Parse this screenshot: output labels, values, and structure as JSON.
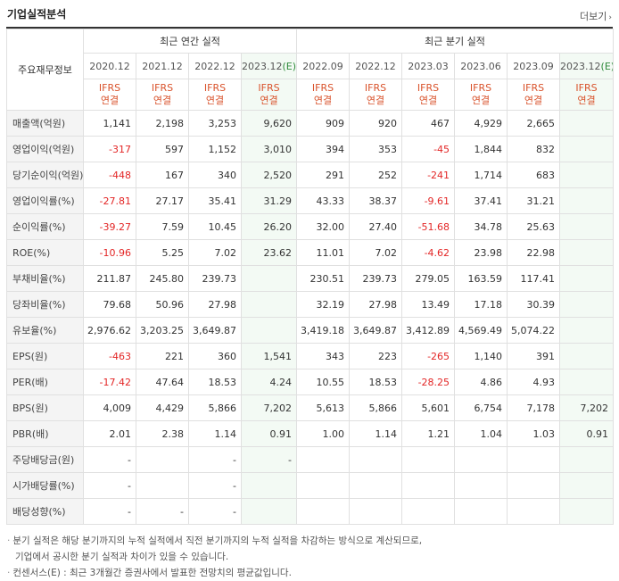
{
  "header": {
    "title": "기업실적분석",
    "more_label": "더보기"
  },
  "table": {
    "corner_label": "주요재무정보",
    "group_annual": "최근 연간 실적",
    "group_quarter": "최근 분기 실적",
    "periods": [
      "2020.12",
      "2021.12",
      "2022.12",
      "2023.12(E)",
      "2022.09",
      "2022.12",
      "2023.03",
      "2023.06",
      "2023.09",
      "2023.12(E)"
    ],
    "basis_line1": "IFRS",
    "basis_line2": "연결",
    "rows": [
      {
        "label": "매출액(억원)",
        "values": [
          "1,141",
          "2,198",
          "3,253",
          "9,620",
          "909",
          "920",
          "467",
          "4,929",
          "2,665",
          ""
        ]
      },
      {
        "label": "영업이익(억원)",
        "values": [
          "-317",
          "597",
          "1,152",
          "3,010",
          "394",
          "353",
          "-45",
          "1,844",
          "832",
          ""
        ]
      },
      {
        "label": "당기순이익(억원)",
        "values": [
          "-448",
          "167",
          "340",
          "2,520",
          "291",
          "252",
          "-241",
          "1,714",
          "683",
          ""
        ]
      },
      {
        "label": "영업이익률(%)",
        "values": [
          "-27.81",
          "27.17",
          "35.41",
          "31.29",
          "43.33",
          "38.37",
          "-9.61",
          "37.41",
          "31.21",
          ""
        ]
      },
      {
        "label": "순이익률(%)",
        "values": [
          "-39.27",
          "7.59",
          "10.45",
          "26.20",
          "32.00",
          "27.40",
          "-51.68",
          "34.78",
          "25.63",
          ""
        ]
      },
      {
        "label": "ROE(%)",
        "values": [
          "-10.96",
          "5.25",
          "7.02",
          "23.62",
          "11.01",
          "7.02",
          "-4.62",
          "23.98",
          "22.98",
          ""
        ]
      },
      {
        "label": "부채비율(%)",
        "values": [
          "211.87",
          "245.80",
          "239.73",
          "",
          "230.51",
          "239.73",
          "279.05",
          "163.59",
          "117.41",
          ""
        ]
      },
      {
        "label": "당좌비율(%)",
        "values": [
          "79.68",
          "50.96",
          "27.98",
          "",
          "32.19",
          "27.98",
          "13.49",
          "17.18",
          "30.39",
          ""
        ]
      },
      {
        "label": "유보율(%)",
        "values": [
          "2,976.62",
          "3,203.25",
          "3,649.87",
          "",
          "3,419.18",
          "3,649.87",
          "3,412.89",
          "4,569.49",
          "5,074.22",
          ""
        ]
      },
      {
        "label": "EPS(원)",
        "values": [
          "-463",
          "221",
          "360",
          "1,541",
          "343",
          "223",
          "-265",
          "1,140",
          "391",
          ""
        ]
      },
      {
        "label": "PER(배)",
        "values": [
          "-17.42",
          "47.64",
          "18.53",
          "4.24",
          "10.55",
          "18.53",
          "-28.25",
          "4.86",
          "4.93",
          ""
        ]
      },
      {
        "label": "BPS(원)",
        "values": [
          "4,009",
          "4,429",
          "5,866",
          "7,202",
          "5,613",
          "5,866",
          "5,601",
          "6,754",
          "7,178",
          "7,202"
        ]
      },
      {
        "label": "PBR(배)",
        "values": [
          "2.01",
          "2.38",
          "1.14",
          "0.91",
          "1.00",
          "1.14",
          "1.21",
          "1.04",
          "1.03",
          "0.91"
        ]
      },
      {
        "label": "주당배당금(원)",
        "values": [
          "-",
          "",
          "-",
          "-",
          "",
          "",
          "",
          "",
          "",
          ""
        ]
      },
      {
        "label": "시가배당률(%)",
        "values": [
          "-",
          "",
          "-",
          "",
          "",
          "",
          "",
          "",
          "",
          ""
        ]
      },
      {
        "label": "배당성향(%)",
        "values": [
          "-",
          "-",
          "-",
          "",
          "",
          "",
          "",
          "",
          "",
          ""
        ]
      }
    ]
  },
  "notes": [
    "분기 실적은 해당 분기까지의 누적 실적에서 직전 분기까지의 누적 실적을 차감하는 방식으로 계산되므로,",
    "기업에서 공시한 분기 실적과 차이가 있을 수 있습니다.",
    "컨센서스(E) : 최근 3개월간 증권사에서 발표한 전망치의 평균값입니다."
  ]
}
